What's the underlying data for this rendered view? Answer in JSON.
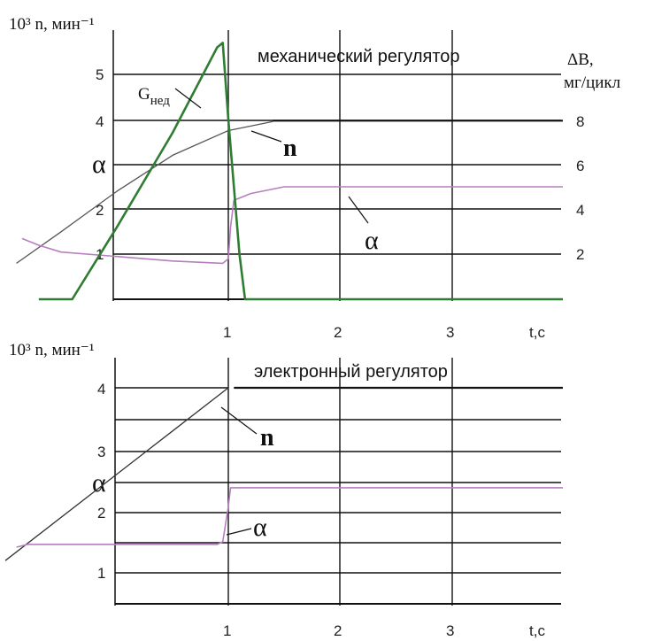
{
  "chart_data": [
    {
      "type": "line",
      "title": "механический регулятор",
      "ylabel": "10³ n, мин⁻¹",
      "ylabel_left_symbol": "α",
      "ylabel_right": "ΔB, мг/цикл",
      "xlabel": "t,c",
      "x_ticks": [
        "1",
        "2",
        "3"
      ],
      "y_ticks_left": [
        "1",
        "2",
        "4",
        "5"
      ],
      "y_ticks_right": [
        "2",
        "4",
        "6",
        "8"
      ],
      "xlim": [
        -1,
        4
      ],
      "ylim": [
        0,
        6
      ],
      "grid": true,
      "colors": {
        "n": "#555555",
        "alpha": "#b77fbf",
        "g": "#2f7d32",
        "grid": "#111111"
      },
      "series": [
        {
          "name": "n",
          "x": [
            -0.9,
            -0.5,
            0,
            0.5,
            1.0,
            1.2,
            1.4
          ],
          "y": [
            0.8,
            1.5,
            2.4,
            3.2,
            3.75,
            3.85,
            3.95
          ]
        },
        {
          "name": "α",
          "x": [
            -0.85,
            -0.7,
            -0.5,
            0,
            0.5,
            0.95,
            1.0,
            1.02,
            1.05,
            1.2,
            1.5,
            2.0,
            4.0
          ],
          "y": [
            1.35,
            1.2,
            1.05,
            0.95,
            0.85,
            0.8,
            0.9,
            1.6,
            2.2,
            2.35,
            2.5,
            2.5,
            2.5
          ]
        },
        {
          "name": "G",
          "label": "Gнед",
          "x": [
            -0.7,
            -0.55,
            -0.4,
            0.0,
            0.5,
            0.9,
            0.95,
            1.0,
            1.1,
            1.15,
            1.25,
            4.0
          ],
          "y": [
            0.0,
            0.0,
            0.0,
            1.6,
            3.7,
            5.6,
            5.7,
            4.0,
            1.0,
            0.0,
            0.0,
            0.0
          ]
        },
        {
          "name": "n-plateau",
          "x": [
            1.4,
            4.0
          ],
          "y": [
            3.97,
            3.97
          ]
        }
      ],
      "annotations": [
        "Gнед",
        "n",
        "α",
        "α"
      ]
    },
    {
      "type": "line",
      "title": "электронный регулятор",
      "ylabel": "10³ n, мин⁻¹",
      "ylabel_left_symbol": "α",
      "xlabel": "t,c",
      "x_ticks": [
        "1",
        "2",
        "3"
      ],
      "y_ticks_left": [
        "1",
        "2",
        "3",
        "4"
      ],
      "xlim": [
        -1,
        4
      ],
      "ylim": [
        0,
        4.5
      ],
      "grid": true,
      "colors": {
        "n": "#333333",
        "alpha": "#b77fbf",
        "grid": "#111111"
      },
      "series": [
        {
          "name": "n",
          "x": [
            -1.0,
            0,
            0.5,
            1.0
          ],
          "y": [
            0.8,
            2.4,
            3.2,
            4.0
          ]
        },
        {
          "name": "α",
          "x": [
            -0.9,
            -0.8,
            0,
            0.5,
            0.9,
            0.95,
            1.0,
            1.02,
            1.1,
            4.0
          ],
          "y": [
            1.05,
            1.1,
            1.1,
            1.1,
            1.1,
            1.15,
            1.8,
            2.15,
            2.15,
            2.15
          ]
        },
        {
          "name": "n-plateau",
          "x": [
            1.05,
            4.0
          ],
          "y": [
            4.0,
            4.0
          ]
        }
      ],
      "annotations": [
        "n",
        "α",
        "α"
      ]
    }
  ]
}
